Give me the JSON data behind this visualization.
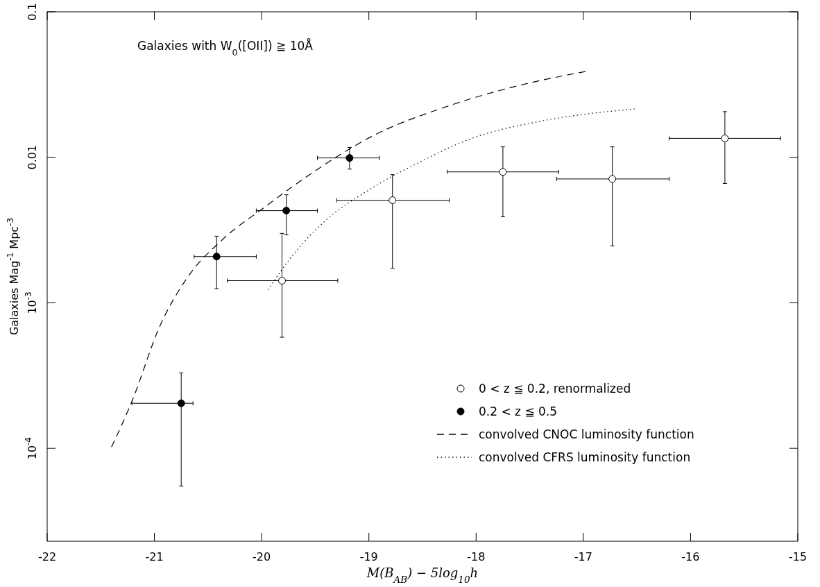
{
  "chart_data": {
    "type": "scatter",
    "xlabel": "M(B$_{AB}$) − 5log$_{10}$h",
    "ylabel": "Galaxies Mag$^{-1}$ Mpc$^{-3}$",
    "log": "y",
    "xlim": [
      -22,
      -15
    ],
    "xticks": [
      -22,
      -21,
      -20,
      -19,
      -18,
      -17,
      -16,
      -15
    ],
    "ylim": [
      2.3e-05,
      0.1
    ],
    "yticks": [
      {
        "value": 0.0001,
        "label": "10$^{-4}$"
      },
      {
        "value": 0.001,
        "label": "10$^{-3}$"
      },
      0.01,
      0.1
    ],
    "legend": "bottom right",
    "grid": false,
    "marker": "circle",
    "annotations": [
      "Galaxies with W$_{0}$([OII]) ≧ 10Å"
    ],
    "series": [
      {
        "name": "0 < z ≦ 0.2, renormalized",
        "color": "#ffffff",
        "x": [
          -19.81,
          -18.78,
          -17.75,
          -16.73,
          -15.68
        ],
        "values": [
          0.00142,
          0.00507,
          0.00794,
          0.0071,
          0.0135
        ],
        "errors": [
          [
            0.00058,
            0.003
          ],
          [
            0.00173,
            0.0076
          ],
          [
            0.0039,
            0.0118
          ],
          [
            0.00246,
            0.0118
          ],
          [
            0.0066,
            0.0206
          ]
        ],
        "xerrors": [
          [
            -20.32,
            -19.29
          ],
          [
            -19.3,
            -18.25
          ],
          [
            -18.27,
            -17.23
          ],
          [
            -17.25,
            -16.2
          ],
          [
            -16.2,
            -15.16
          ]
        ]
      },
      {
        "name": "0.2 < z ≦ 0.5",
        "color": "#000000",
        "x": [
          -20.75,
          -20.42,
          -19.77,
          -19.18
        ],
        "values": [
          0.000204,
          0.00208,
          0.0043,
          0.0099
        ],
        "errors": [
          [
            5.5e-05,
            0.00033
          ],
          [
            0.00125,
            0.00287
          ],
          [
            0.00293,
            0.00553
          ],
          [
            0.0083,
            0.0117
          ]
        ],
        "xerrors": [
          [
            -21.21,
            -20.64
          ],
          [
            -20.63,
            -20.05
          ],
          [
            -20.05,
            -19.48
          ],
          [
            -19.48,
            -18.9
          ]
        ]
      },
      {
        "name": "convolved CNOC luminosity function",
        "type": "line",
        "marker": "none",
        "line_style": "dashed",
        "color": "#000000",
        "x": [
          -21.4,
          -21.21,
          -20.95,
          -20.69,
          -20.37,
          -19.98,
          -19.53,
          -18.95,
          -18.3,
          -17.65,
          -16.97
        ],
        "values": [
          0.000102,
          0.00021,
          0.00069,
          0.0015,
          0.0027,
          0.0045,
          0.0078,
          0.0142,
          0.022,
          0.0305,
          0.039
        ]
      },
      {
        "name": "convolved CFRS luminosity function",
        "type": "line",
        "marker": "none",
        "line_style": "dotted",
        "color": "#000000",
        "x": [
          -19.94,
          -19.72,
          -19.4,
          -19.01,
          -18.56,
          -18.04,
          -17.4,
          -16.52
        ],
        "values": [
          0.00123,
          0.00208,
          0.0037,
          0.0059,
          0.009,
          0.0135,
          0.0177,
          0.0215
        ]
      }
    ]
  }
}
